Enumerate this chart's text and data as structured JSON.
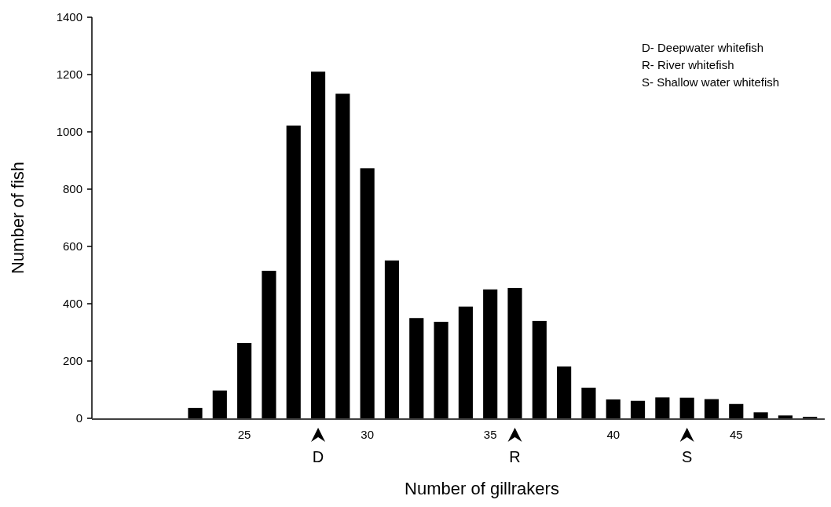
{
  "chart_data": {
    "type": "bar",
    "xlabel": "Number of gillrakers",
    "ylabel": "Number of fish",
    "x": [
      23,
      24,
      25,
      26,
      27,
      28,
      29,
      30,
      31,
      32,
      33,
      34,
      35,
      36,
      37,
      38,
      39,
      40,
      41,
      42,
      43,
      44,
      45,
      46,
      47,
      48
    ],
    "values": [
      36,
      97,
      263,
      515,
      1022,
      1210,
      1133,
      873,
      551,
      350,
      337,
      390,
      450,
      455,
      340,
      181,
      107,
      66,
      61,
      73,
      72,
      67,
      50,
      21,
      10,
      5
    ],
    "color": "#000000",
    "xlim": [
      18.8,
      48.6
    ],
    "xticks": [
      25,
      30,
      35,
      40,
      45
    ],
    "ylim": [
      0,
      1400
    ],
    "yticks": [
      0,
      200,
      400,
      600,
      800,
      1000,
      1200,
      1400
    ],
    "grid": false,
    "annotations": [
      "D- Deepwater whitefish",
      "R- River whitefish",
      "S- Shallow water whitefish",
      {
        "text": "D",
        "x": 28,
        "y": 0
      },
      {
        "text": "R",
        "x": 36,
        "y": 0
      },
      {
        "text": "S",
        "x": 43,
        "y": 0
      }
    ]
  }
}
